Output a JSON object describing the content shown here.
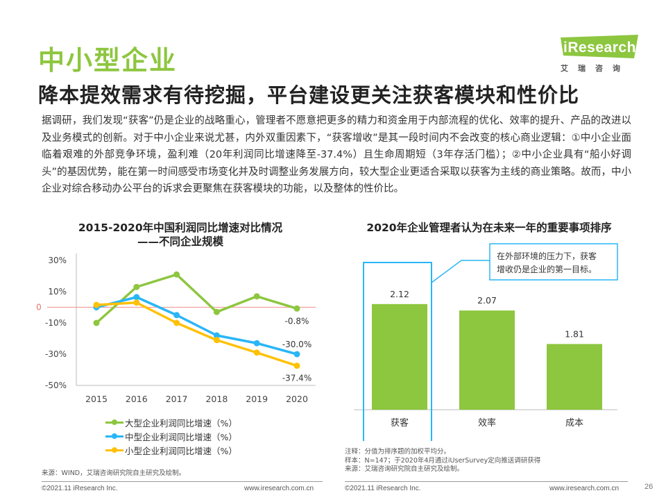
{
  "header": {
    "title": "中小型企业",
    "subtitle": "降本提效需求有待挖掘，平台建设更关注获客模块和性价比"
  },
  "logo": {
    "text": "iResearch",
    "sub": "艾瑞咨询"
  },
  "paragraph": "据调研，我们发现“获客”仍是企业的战略重心，管理者不愿意把更多的精力和资金用于内部流程的优化、效率的提升、产品的改进以及业务模式的创新。对于中小企业来说尤甚，内外双重因素下，“获客增收”是其一段时间内不会改变的核心商业逻辑：①中小企业面临着艰难的外部竞争环境，盈利难（20年利润同比增速降至-37.4%）且生命周期短（3年存活门槛）；②中小企业具有“船小好调头”的基因优势，能在第一时间感受市场变化并及时调整业务发展方向，较大型企业更适合采取以获客为主线的商业策略。故而，中小企业对综合移动办公平台的诉求会更聚焦在获客模块的功能，以及整体的性价比。",
  "colors": {
    "large": "#8dc63f",
    "medium": "#29b6f6",
    "small": "#ffc107",
    "bar": "#8dc63f",
    "accent": "#8dc63f",
    "highlight": "#29b6f6",
    "zero_line": "#f4a0a0"
  },
  "chart_data": [
    {
      "type": "line",
      "title": "2015-2020年中国利润同比增速对比情况",
      "subtitle": "——不同企业规模",
      "x": [
        "2015",
        "2016",
        "2017",
        "2018",
        "2019",
        "2020"
      ],
      "y_ticks": [
        "30%",
        "10%",
        "0",
        "-10%",
        "-30%",
        "-50%"
      ],
      "y_tick_values": [
        30,
        10,
        0,
        -10,
        -30,
        -50
      ],
      "ylim": [
        -50,
        30
      ],
      "series": [
        {
          "name": "大型企业利润同比增速（%）",
          "values": [
            -10,
            13,
            21,
            -3,
            7,
            -0.8
          ],
          "end_label": "-0.8%"
        },
        {
          "name": "中型企业利润同比增速（%）",
          "values": [
            0,
            6.5,
            -5,
            -18,
            -23,
            -30
          ],
          "end_label": "-30.0%"
        },
        {
          "name": "小型企业利润同比增速（%）",
          "values": [
            1.5,
            3,
            -10,
            -21,
            -29,
            -37.4
          ],
          "end_label": "-37.4%"
        }
      ],
      "source": "来源：WIND，艾瑞咨询研究院自主研究及绘制。"
    },
    {
      "type": "bar",
      "title": "2020年企业管理者认为在未来一年的重要事项排序",
      "categories": [
        "获客",
        "效率",
        "成本"
      ],
      "values": [
        2.12,
        2.07,
        1.81
      ],
      "value_labels": [
        "2.12",
        "2.07",
        "1.81"
      ],
      "callout": "在外部环境的压力下，获客增收仍是企业的第一目标。",
      "notes": [
        "注释：分值为排序题的加权平均分。",
        "样本：N=147；于2020年4月通过iUserSurvey定向推送调研获得",
        "来源：艾瑞咨询研究院自主研究及绘制。"
      ]
    }
  ],
  "footer": {
    "left_copyright": "©2021.11 iResearch Inc.",
    "left_url": "www.iresearch.com.cn",
    "right_copyright": "©2021.11 iResearch Inc.",
    "right_url": "www.iresearch.com.cn",
    "page": "26"
  }
}
